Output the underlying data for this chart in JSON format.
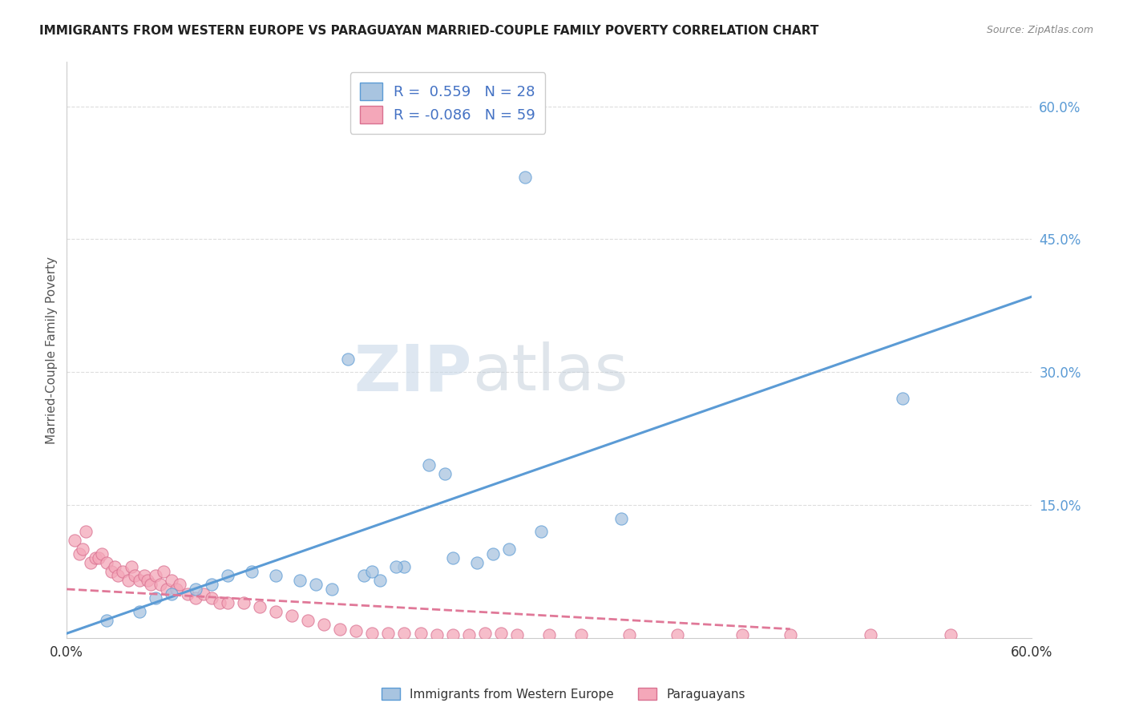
{
  "title": "IMMIGRANTS FROM WESTERN EUROPE VS PARAGUAYAN MARRIED-COUPLE FAMILY POVERTY CORRELATION CHART",
  "source": "Source: ZipAtlas.com",
  "xlabel": "",
  "ylabel": "Married-Couple Family Poverty",
  "legend_label1": "Immigrants from Western Europe",
  "legend_label2": "Paraguayans",
  "r1": 0.559,
  "n1": 28,
  "r2": -0.086,
  "n2": 59,
  "xlim": [
    0.0,
    0.6
  ],
  "ylim": [
    0.0,
    0.65
  ],
  "y_ticks_right": [
    0.15,
    0.3,
    0.45,
    0.6
  ],
  "y_tick_labels_right": [
    "15.0%",
    "30.0%",
    "45.0%",
    "60.0%"
  ],
  "color_blue_fill": "#a8c4e0",
  "color_blue_edge": "#5b9bd5",
  "color_blue_line": "#5b9bd5",
  "color_pink_fill": "#f4a7b9",
  "color_pink_edge": "#d97090",
  "color_pink_line": "#e07898",
  "watermark_zip": "ZIP",
  "watermark_atlas": "atlas",
  "background_color": "#ffffff",
  "grid_color": "#dddddd",
  "blue_scatter_x": [
    0.285,
    0.175,
    0.225,
    0.235,
    0.295,
    0.345,
    0.025,
    0.045,
    0.055,
    0.065,
    0.08,
    0.09,
    0.1,
    0.115,
    0.13,
    0.145,
    0.155,
    0.165,
    0.185,
    0.195,
    0.21,
    0.24,
    0.255,
    0.265,
    0.275,
    0.19,
    0.205,
    0.52
  ],
  "blue_scatter_y": [
    0.52,
    0.315,
    0.195,
    0.185,
    0.12,
    0.135,
    0.02,
    0.03,
    0.045,
    0.05,
    0.055,
    0.06,
    0.07,
    0.075,
    0.07,
    0.065,
    0.06,
    0.055,
    0.07,
    0.065,
    0.08,
    0.09,
    0.085,
    0.095,
    0.1,
    0.075,
    0.08,
    0.27
  ],
  "pink_scatter_x": [
    0.005,
    0.008,
    0.01,
    0.012,
    0.015,
    0.018,
    0.02,
    0.022,
    0.025,
    0.028,
    0.03,
    0.032,
    0.035,
    0.038,
    0.04,
    0.042,
    0.045,
    0.048,
    0.05,
    0.052,
    0.055,
    0.058,
    0.06,
    0.062,
    0.065,
    0.068,
    0.07,
    0.075,
    0.08,
    0.085,
    0.09,
    0.095,
    0.1,
    0.11,
    0.12,
    0.13,
    0.14,
    0.15,
    0.16,
    0.17,
    0.18,
    0.19,
    0.2,
    0.21,
    0.22,
    0.23,
    0.24,
    0.25,
    0.26,
    0.27,
    0.28,
    0.3,
    0.32,
    0.35,
    0.38,
    0.42,
    0.45,
    0.5,
    0.55
  ],
  "pink_scatter_y": [
    0.11,
    0.095,
    0.1,
    0.12,
    0.085,
    0.09,
    0.09,
    0.095,
    0.085,
    0.075,
    0.08,
    0.07,
    0.075,
    0.065,
    0.08,
    0.07,
    0.065,
    0.07,
    0.065,
    0.06,
    0.07,
    0.06,
    0.075,
    0.055,
    0.065,
    0.055,
    0.06,
    0.05,
    0.045,
    0.05,
    0.045,
    0.04,
    0.04,
    0.04,
    0.035,
    0.03,
    0.025,
    0.02,
    0.015,
    0.01,
    0.008,
    0.005,
    0.005,
    0.005,
    0.005,
    0.003,
    0.003,
    0.003,
    0.005,
    0.005,
    0.003,
    0.003,
    0.003,
    0.003,
    0.003,
    0.003,
    0.003,
    0.003,
    0.003
  ],
  "blue_line_x": [
    0.0,
    0.6
  ],
  "blue_line_y": [
    0.005,
    0.385
  ],
  "pink_line_x": [
    0.0,
    0.45
  ],
  "pink_line_y": [
    0.055,
    0.01
  ]
}
